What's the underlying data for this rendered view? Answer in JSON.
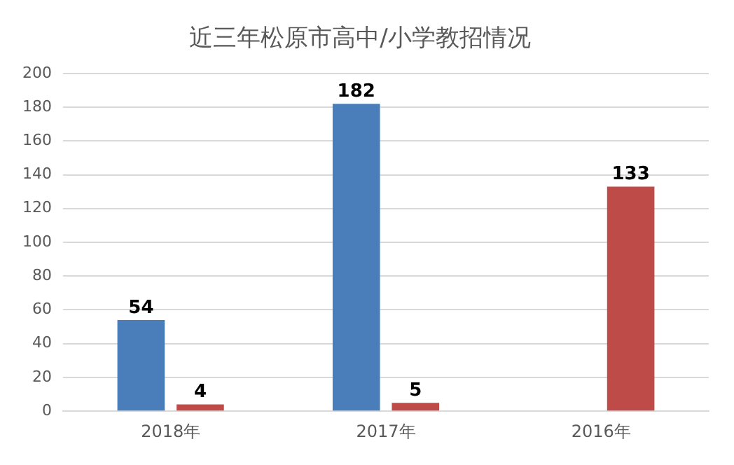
{
  "chart_data": {
    "type": "bar",
    "title": "近三年松原市高中/小学教招情况",
    "categories": [
      "2018年",
      "2017年",
      "2016年"
    ],
    "series": [
      {
        "color": "#4a7ebb",
        "values": [
          54,
          182,
          null
        ]
      },
      {
        "color": "#be4b48",
        "values": [
          4,
          5,
          133
        ]
      }
    ],
    "ylim": [
      0,
      200
    ],
    "yticks": [
      0,
      20,
      40,
      60,
      80,
      100,
      120,
      140,
      160,
      180,
      200
    ],
    "grid": "y",
    "data_labels": true,
    "legend": false
  }
}
